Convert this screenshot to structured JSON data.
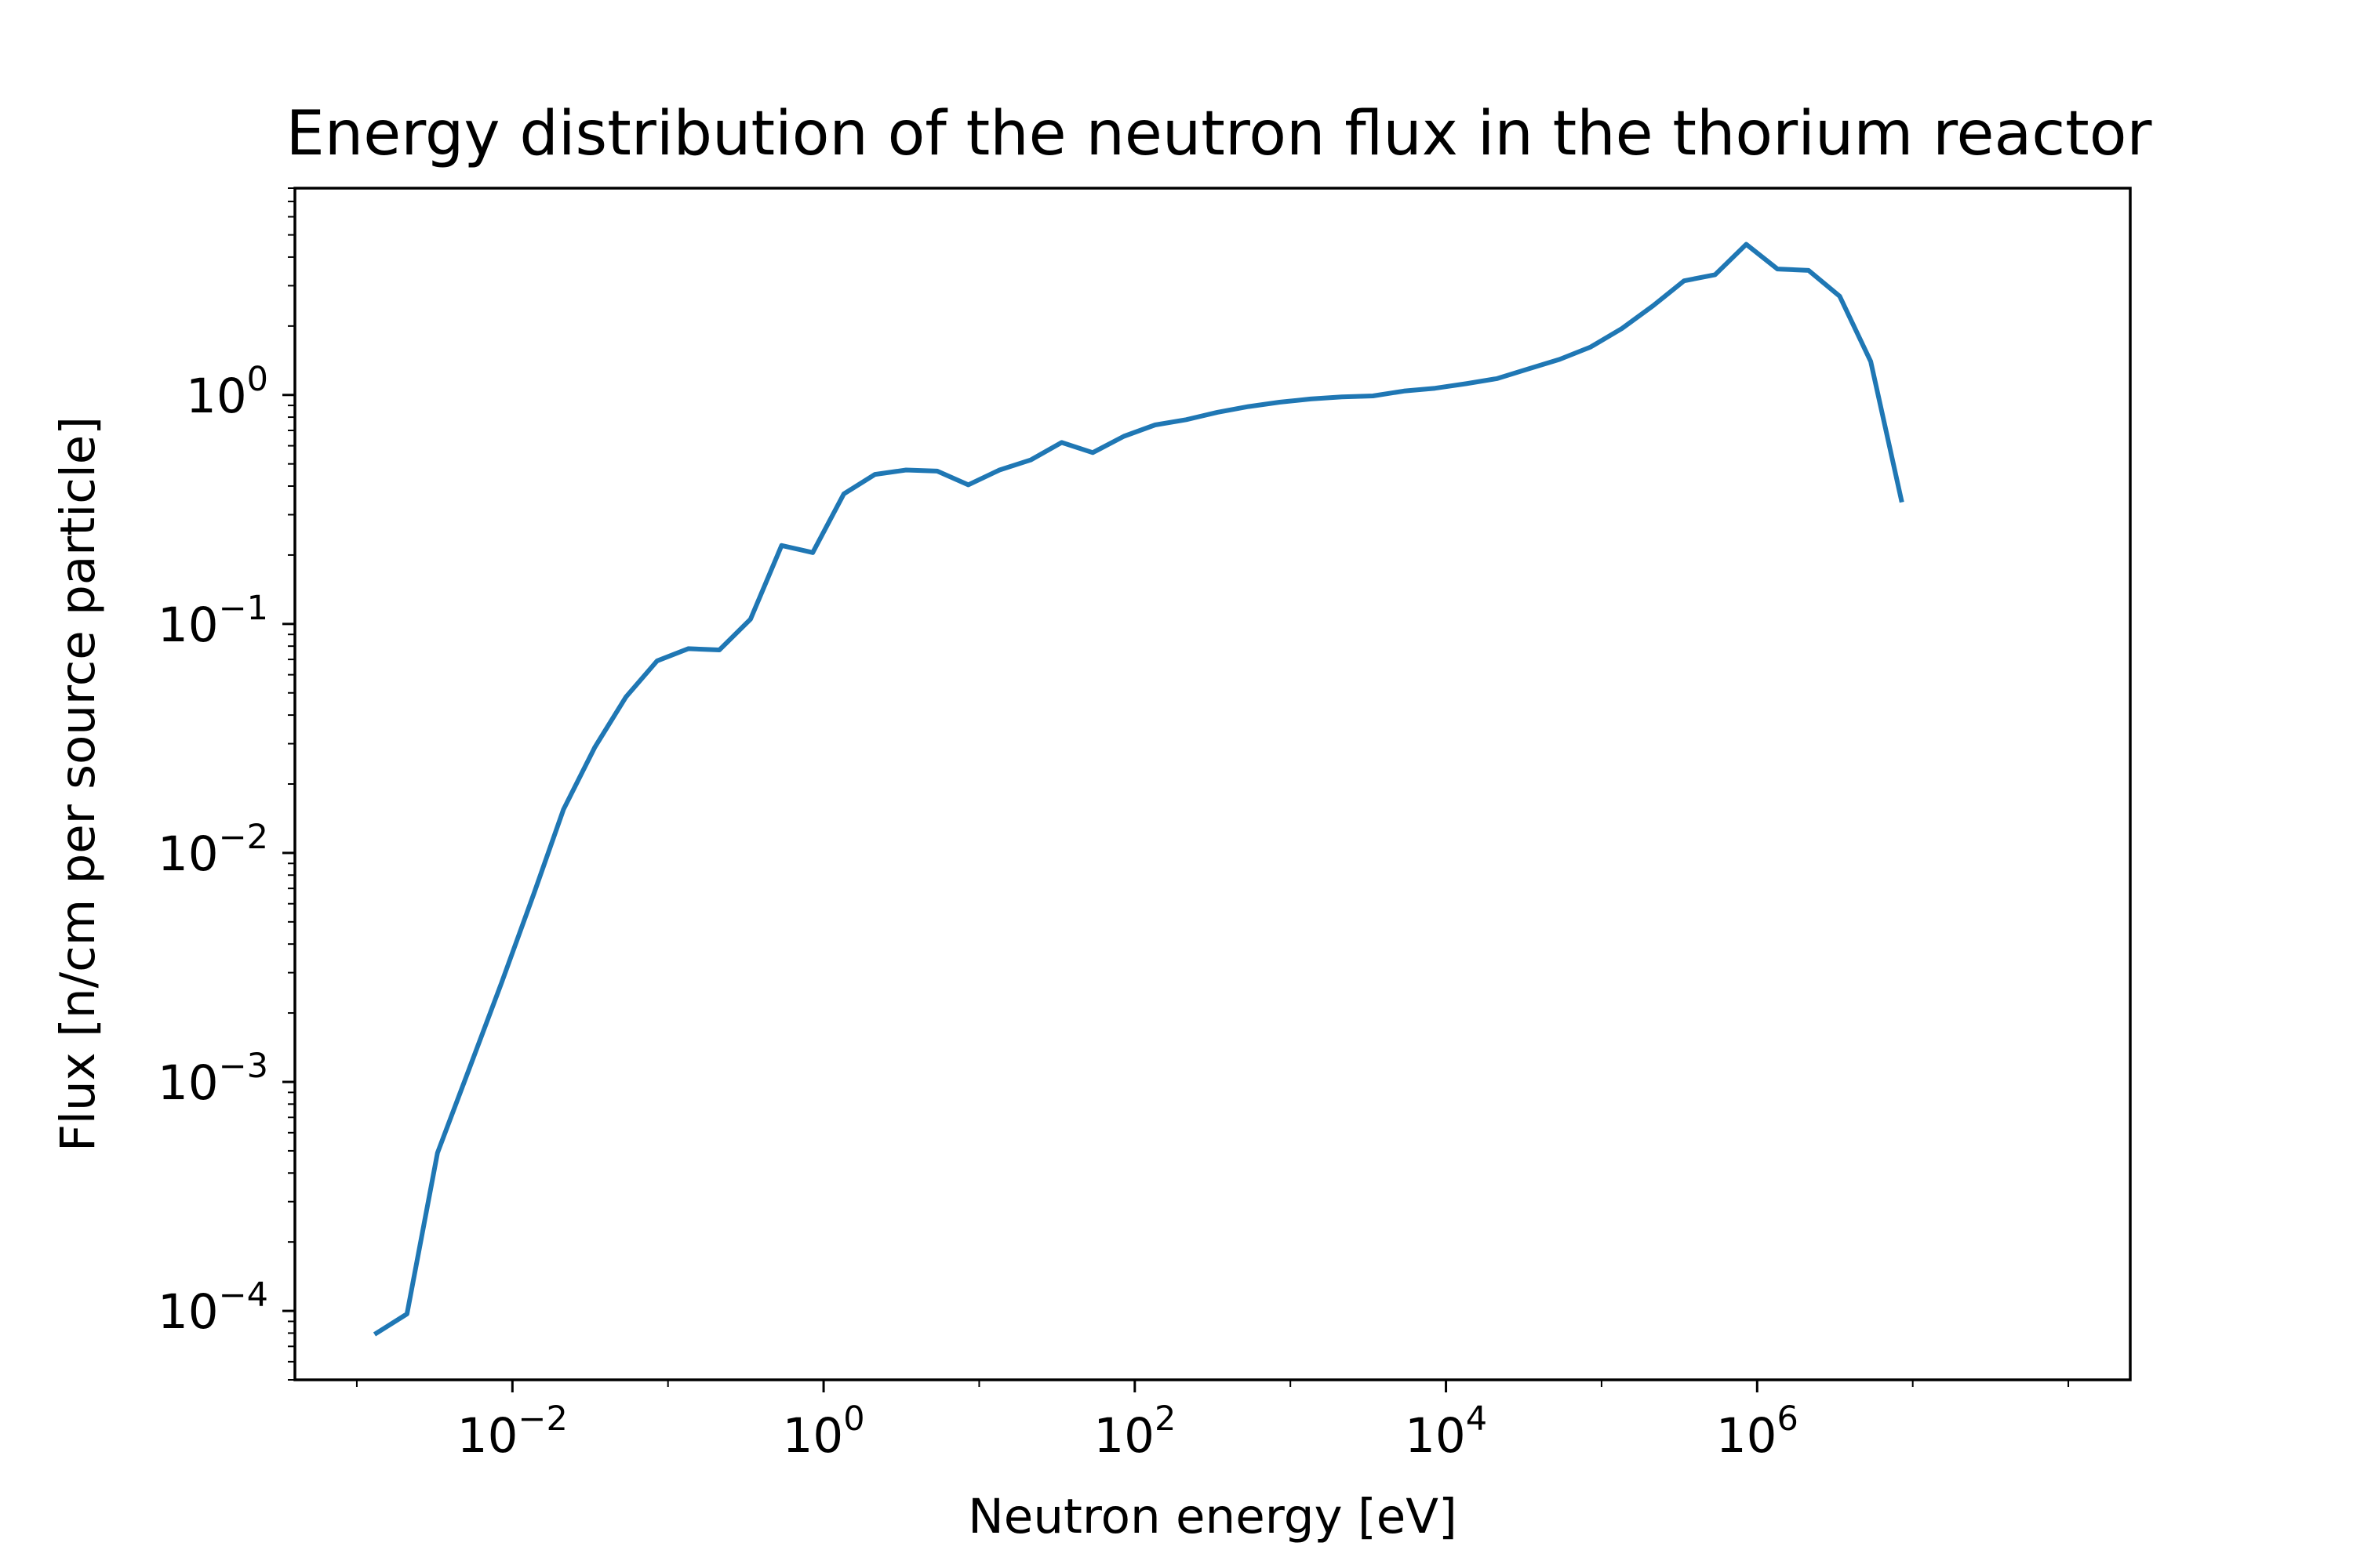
{
  "chart_data": {
    "type": "line",
    "title": "Energy distribution of the neutron flux in the thorium reactor",
    "xlabel": "Neutron energy [eV]",
    "ylabel": "Flux [n/cm per source particle]",
    "xscale": "log",
    "yscale": "log",
    "xlim": [
      0.0004,
      250000000
    ],
    "ylim": [
      5e-05,
      8
    ],
    "grid": false,
    "legend": "none",
    "xticks": [
      {
        "base": "10",
        "exp": "−2",
        "value": 0.01
      },
      {
        "base": "10",
        "exp": "0",
        "value": 1
      },
      {
        "base": "10",
        "exp": "2",
        "value": 100
      },
      {
        "base": "10",
        "exp": "4",
        "value": 10000
      },
      {
        "base": "10",
        "exp": "6",
        "value": 1000000
      }
    ],
    "yticks": [
      {
        "base": "10",
        "exp": "0",
        "value": 1
      },
      {
        "base": "10",
        "exp": "−1",
        "value": 0.1
      },
      {
        "base": "10",
        "exp": "−2",
        "value": 0.01
      },
      {
        "base": "10",
        "exp": "−3",
        "value": 0.001
      },
      {
        "base": "10",
        "exp": "−4",
        "value": 0.0001
      }
    ],
    "series": [
      {
        "color": "#1f77b4",
        "x": [
          0.0013,
          0.0021,
          0.0033,
          0.0053,
          0.0085,
          0.0138,
          0.0213,
          0.0339,
          0.0537,
          0.0851,
          0.135,
          0.214,
          0.339,
          0.537,
          0.851,
          1.35,
          2.14,
          3.39,
          5.37,
          8.51,
          13.5,
          21.4,
          33.9,
          53.7,
          85.1,
          135,
          214,
          339,
          537,
          851,
          1350,
          2140,
          3390,
          5370,
          8510,
          13500,
          21400,
          33900,
          53700,
          85100,
          135000,
          214000,
          339000,
          537000,
          851000,
          1350000,
          2140000,
          3390000,
          5370000,
          8510000
        ],
        "y": [
          7.9e-05,
          9.7e-05,
          0.00049,
          0.00115,
          0.0027,
          0.0067,
          0.0155,
          0.029,
          0.048,
          0.069,
          0.078,
          0.077,
          0.105,
          0.22,
          0.205,
          0.37,
          0.45,
          0.47,
          0.465,
          0.405,
          0.47,
          0.52,
          0.62,
          0.56,
          0.66,
          0.74,
          0.78,
          0.84,
          0.89,
          0.93,
          0.96,
          0.98,
          0.99,
          1.04,
          1.07,
          1.12,
          1.18,
          1.3,
          1.43,
          1.62,
          1.95,
          2.45,
          3.15,
          3.35,
          4.55,
          3.55,
          3.5,
          2.7,
          1.4,
          0.34
        ]
      }
    ]
  }
}
